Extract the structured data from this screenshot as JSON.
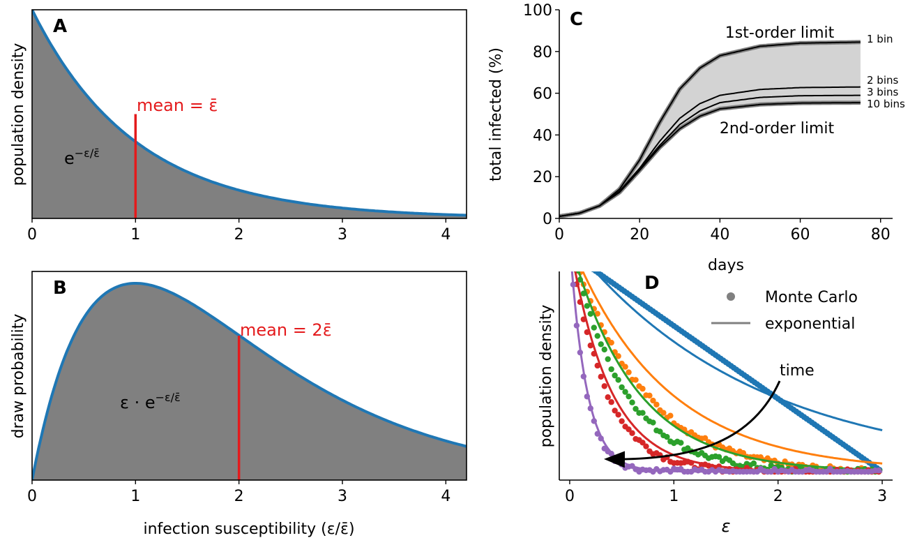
{
  "panels": {
    "A": {
      "letter": "A",
      "ylabel": "population density",
      "mean_label": "mean = ε̄",
      "formula_base": "e",
      "formula_exp": "−ε/ε̄",
      "xticks": [
        "0",
        "1",
        "2",
        "3",
        "4"
      ]
    },
    "B": {
      "letter": "B",
      "ylabel": "draw probability",
      "xlabel": "infection susceptibility (ε/ε̄)",
      "mean_label": "mean = 2ε̄",
      "formula_base": "ε · e",
      "formula_exp": "−ε/ε̄",
      "xticks": [
        "0",
        "1",
        "2",
        "3",
        "4"
      ]
    },
    "C": {
      "letter": "C",
      "ylabel": "total infected (%)",
      "xlabel": "days",
      "upper_label": "1st-order limit",
      "lower_label": "2nd-order limit",
      "xticks": [
        "0",
        "20",
        "40",
        "60",
        "80"
      ],
      "yticks": [
        "0",
        "20",
        "40",
        "60",
        "80",
        "100"
      ]
    },
    "D": {
      "letter": "D",
      "ylabel": "population density",
      "xlabel": "ε",
      "legend_dots": "Monte Carlo",
      "legend_line": "exponential",
      "arrow_label": "time",
      "xticks": [
        "0",
        "1",
        "2",
        "3"
      ]
    }
  },
  "colors": {
    "fill": "#808080",
    "curve": "#1f77b4",
    "mean_line": "#e41a1c",
    "band": "#d3d3d3",
    "series": [
      "#1f77b4",
      "#ff7f0e",
      "#2ca02c",
      "#d62728",
      "#9467bd"
    ]
  },
  "chart_data": [
    {
      "panel": "A",
      "type": "area",
      "series": [
        {
          "function": "exp(-x)",
          "x": [
            0,
            0.5,
            1,
            1.5,
            2,
            2.5,
            3,
            3.5,
            4,
            4.2
          ],
          "values": [
            1,
            0.607,
            0.368,
            0.223,
            0.135,
            0.082,
            0.05,
            0.03,
            0.018,
            0.015
          ]
        }
      ],
      "xlim": [
        0,
        4.2
      ],
      "ylim": [
        0,
        1
      ],
      "annotations": [
        {
          "type": "vline",
          "x": 1,
          "y_top": 0.5,
          "label": "mean = ε̄"
        }
      ]
    },
    {
      "panel": "B",
      "type": "area",
      "series": [
        {
          "function": "x*exp(-x)",
          "x": [
            0,
            0.5,
            1,
            1.5,
            2,
            2.5,
            3,
            3.5,
            4,
            4.2
          ],
          "values": [
            0,
            0.303,
            0.368,
            0.335,
            0.271,
            0.205,
            0.149,
            0.106,
            0.073,
            0.063
          ]
        }
      ],
      "xlim": [
        0,
        4.2
      ],
      "ylim": [
        0,
        0.4
      ],
      "annotations": [
        {
          "type": "vline",
          "x": 2,
          "y_top": 0.27,
          "label": "mean = 2ε̄"
        }
      ]
    },
    {
      "panel": "C",
      "type": "line",
      "xlim": [
        0,
        83
      ],
      "ylim": [
        0,
        100
      ],
      "series": [
        {
          "name": "1 bin",
          "final": 84.5,
          "x": [
            0,
            5,
            10,
            15,
            20,
            25,
            30,
            35,
            40,
            50,
            60,
            75
          ],
          "values": [
            1,
            2.5,
            6,
            14,
            28,
            46,
            62,
            72,
            78,
            82.5,
            84,
            84.5
          ]
        },
        {
          "name": "2 bins",
          "final": 63,
          "x": [
            0,
            5,
            10,
            15,
            20,
            25,
            30,
            35,
            40,
            50,
            60,
            75
          ],
          "values": [
            1,
            2.5,
            6,
            13,
            24,
            37,
            48,
            55,
            59,
            61.8,
            62.7,
            63
          ]
        },
        {
          "name": "3 bins",
          "final": 59,
          "x": [
            0,
            5,
            10,
            15,
            20,
            25,
            30,
            35,
            40,
            50,
            60,
            75
          ],
          "values": [
            1,
            2.5,
            6,
            13,
            23.5,
            35,
            45,
            51.5,
            55.5,
            58,
            58.8,
            59
          ]
        },
        {
          "name": "10 bins",
          "final": 55.5,
          "x": [
            0,
            5,
            10,
            15,
            20,
            25,
            30,
            35,
            40,
            50,
            60,
            75
          ],
          "values": [
            1,
            2.5,
            6,
            12.5,
            23,
            34,
            43,
            49,
            52.5,
            54.6,
            55.3,
            55.5
          ]
        }
      ],
      "band": {
        "upper": "1 bin",
        "lower": "10 bins"
      }
    },
    {
      "panel": "D",
      "type": "scatter",
      "xlim": [
        -0.1,
        3.1
      ],
      "ylim": [
        0,
        1
      ],
      "series": [
        {
          "color_index": 0,
          "scale": 1.75
        },
        {
          "color_index": 1,
          "scale": 0.9
        },
        {
          "color_index": 2,
          "scale": 0.62
        },
        {
          "color_index": 3,
          "scale": 0.38
        },
        {
          "color_index": 4,
          "scale": 0.16
        }
      ]
    }
  ]
}
